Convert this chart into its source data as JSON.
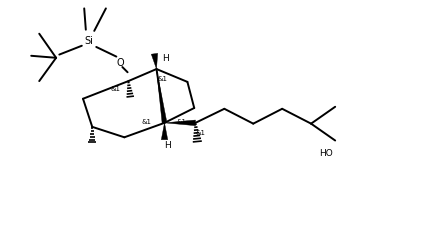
{
  "background": "#ffffff",
  "line_color": "#000000",
  "line_width": 1.4,
  "fig_width": 4.23,
  "fig_height": 2.26,
  "dpi": 100,
  "xlim": [
    0,
    10.5
  ],
  "ylim": [
    0,
    5.5
  ]
}
